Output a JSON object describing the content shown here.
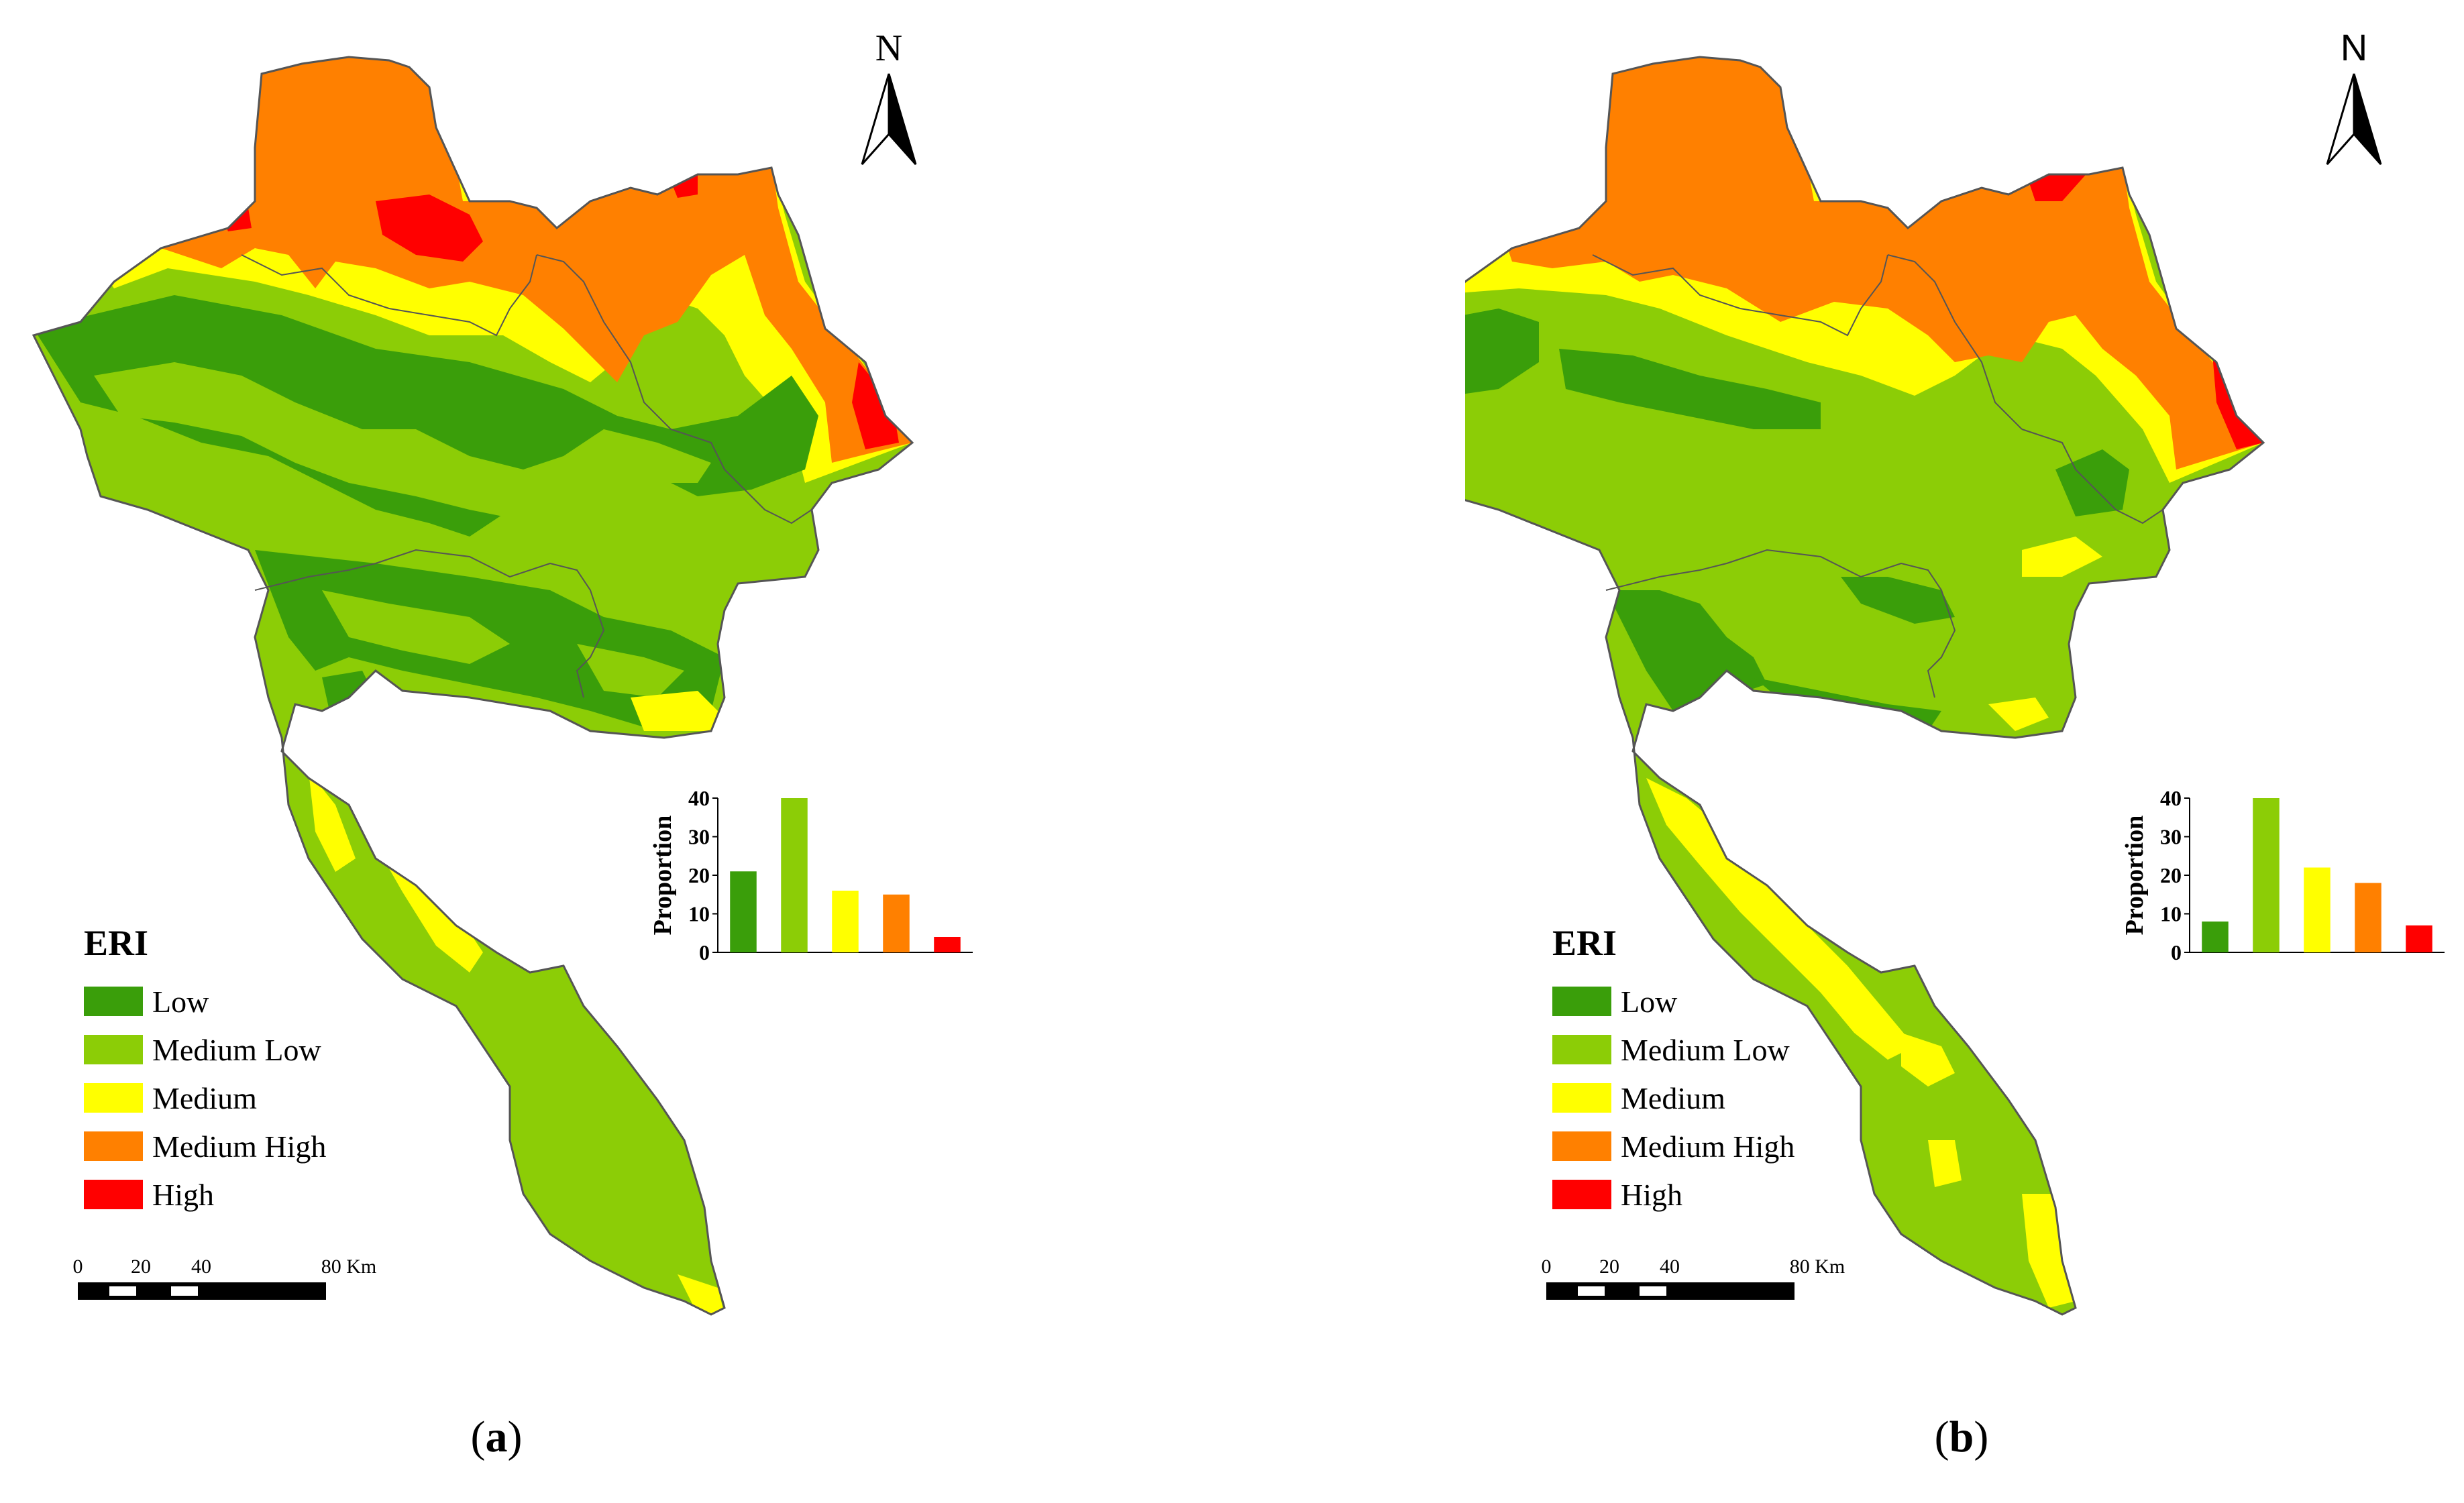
{
  "colors": {
    "low": "#3a9e0a",
    "medium_low": "#8ccd06",
    "medium": "#ffff00",
    "medium_high": "#ff8000",
    "high": "#ff0000",
    "boundary": "#555555"
  },
  "legend": {
    "title": "ERI",
    "items": [
      {
        "label": "Low",
        "color": "#3a9e0a"
      },
      {
        "label": "Medium Low",
        "color": "#8ccd06"
      },
      {
        "label": "Medium",
        "color": "#ffff00"
      },
      {
        "label": "Medium High",
        "color": "#ff8000"
      },
      {
        "label": "High",
        "color": "#ff0000"
      }
    ]
  },
  "north_arrow": {
    "label": "N"
  },
  "scale_bar": {
    "ticks": [
      "0",
      "20",
      "40",
      "80 Km"
    ]
  },
  "panels": [
    {
      "label_open": "(",
      "label_letter": "a",
      "label_close": ")"
    },
    {
      "label_open": "(",
      "label_letter": "b",
      "label_close": ")"
    }
  ],
  "chart_data": [
    {
      "type": "bar",
      "categories": [
        "Low",
        "Medium Low",
        "Medium",
        "Medium High",
        "High"
      ],
      "values": [
        21,
        40,
        16,
        15,
        4
      ],
      "ylabel": "Proportion",
      "ylim": [
        0,
        40
      ],
      "yticks": [
        "0",
        "10",
        "20",
        "30",
        "40"
      ],
      "colors": [
        "#3a9e0a",
        "#8ccd06",
        "#ffff00",
        "#ff8000",
        "#ff0000"
      ]
    },
    {
      "type": "bar",
      "categories": [
        "Low",
        "Medium Low",
        "Medium",
        "Medium High",
        "High"
      ],
      "values": [
        8,
        40,
        22,
        18,
        7
      ],
      "ylabel": "Proportion",
      "ylim": [
        0,
        40
      ],
      "yticks": [
        "0",
        "10",
        "20",
        "30",
        "40"
      ],
      "colors": [
        "#3a9e0a",
        "#8ccd06",
        "#ffff00",
        "#ff8000",
        "#ff0000"
      ]
    }
  ]
}
